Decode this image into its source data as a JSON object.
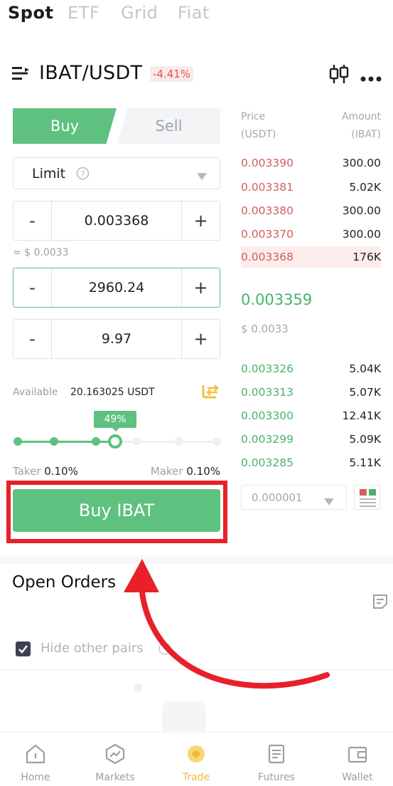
{
  "top_tabs": [
    "Spot",
    "ETF",
    "Grid",
    "Fiat"
  ],
  "pair": {
    "name": "IBAT/USDT",
    "change": "-4.41%"
  },
  "order_form": {
    "buy_label": "Buy",
    "sell_label": "Sell",
    "order_type": "Limit",
    "price": "0.003368",
    "price_usd": "≈ $ 0.0033",
    "amount": "2960.24",
    "total": "9.97",
    "available_label": "Available",
    "available_value": "20.163025 USDT",
    "slider_percent_label": "49%",
    "slider_fraction": 0.49,
    "taker_label": "Taker",
    "taker_value": "0.10%",
    "maker_label": "Maker",
    "maker_value": "0.10%",
    "submit_label": "Buy IBAT"
  },
  "order_book": {
    "price_header": "Price",
    "price_unit": "(USDT)",
    "amount_header": "Amount",
    "amount_unit": "(IBAT)",
    "asks": [
      {
        "price": "0.003390",
        "amount": "300.00"
      },
      {
        "price": "0.003381",
        "amount": "5.02K"
      },
      {
        "price": "0.003380",
        "amount": "300.00"
      },
      {
        "price": "0.003370",
        "amount": "300.00"
      },
      {
        "price": "0.003368",
        "amount": "176K"
      }
    ],
    "last_price": "0.003359",
    "last_price_usd": "$ 0.0033",
    "bids": [
      {
        "price": "0.003326",
        "amount": "5.04K"
      },
      {
        "price": "0.003313",
        "amount": "5.07K"
      },
      {
        "price": "0.003300",
        "amount": "12.41K"
      },
      {
        "price": "0.003299",
        "amount": "5.09K"
      },
      {
        "price": "0.003285",
        "amount": "5.11K"
      }
    ],
    "precision": "0.000001"
  },
  "open_orders": {
    "title": "Open Orders",
    "hide_pairs_label": "Hide other pairs"
  },
  "nav": [
    {
      "label": "Home",
      "icon": "home-icon"
    },
    {
      "label": "Markets",
      "icon": "markets-icon"
    },
    {
      "label": "Trade",
      "icon": "trade-icon"
    },
    {
      "label": "Futures",
      "icon": "futures-icon"
    },
    {
      "label": "Wallet",
      "icon": "wallet-icon"
    }
  ],
  "colors": {
    "green": "#5ec17f",
    "red": "#d0605b",
    "annotation_red": "#e8202a",
    "active_nav": "#f0b93a"
  }
}
